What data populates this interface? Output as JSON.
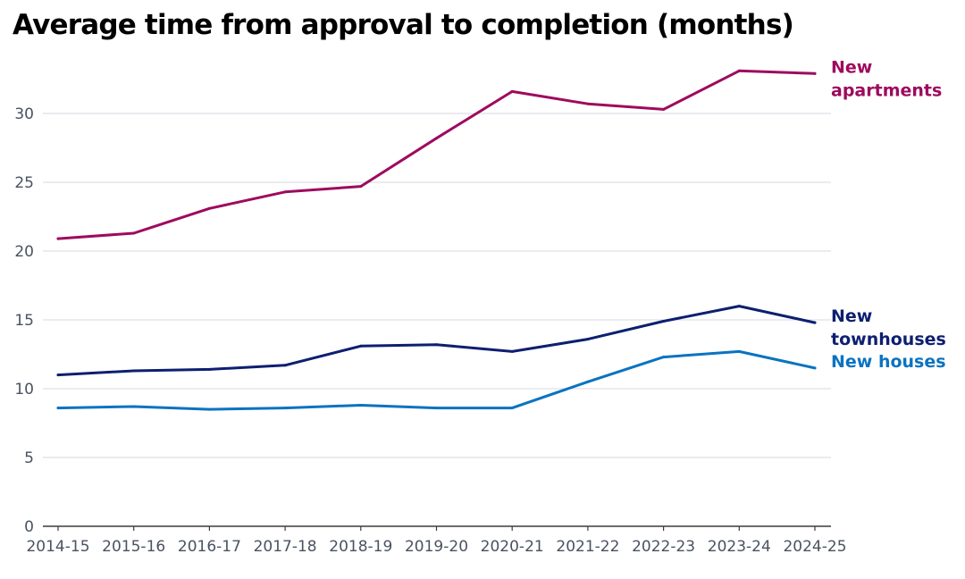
{
  "chart_data": {
    "type": "line",
    "title": "Average time from approval to completion (months)",
    "xlabel": "",
    "ylabel": "",
    "categories": [
      "2014-15",
      "2015-16",
      "2016-17",
      "2017-18",
      "2018-19",
      "2019-20",
      "2020-21",
      "2021-22",
      "2022-23",
      "2023-24",
      "2024-25"
    ],
    "yticks": [
      0,
      5,
      10,
      15,
      20,
      25,
      30
    ],
    "ylim": [
      0,
      33.5
    ],
    "grid": true,
    "legend": "direct labels at right end of lines",
    "series": [
      {
        "name": "New apartments",
        "label_lines": [
          "New",
          "apartments"
        ],
        "color": "#9e0a5e",
        "values": [
          20.9,
          21.3,
          23.1,
          24.3,
          24.7,
          28.2,
          31.6,
          30.7,
          30.3,
          33.1,
          32.9
        ]
      },
      {
        "name": "New townhouses",
        "label_lines": [
          "New",
          "townhouses"
        ],
        "color": "#0d1f70",
        "values": [
          11.0,
          11.3,
          11.4,
          11.7,
          13.1,
          13.2,
          12.7,
          13.6,
          14.9,
          16.0,
          14.8
        ]
      },
      {
        "name": "New houses",
        "label_lines": [
          "New houses"
        ],
        "color": "#0b73c0",
        "values": [
          8.6,
          8.7,
          8.5,
          8.6,
          8.8,
          8.6,
          8.6,
          10.5,
          12.3,
          12.7,
          11.5
        ]
      }
    ]
  }
}
